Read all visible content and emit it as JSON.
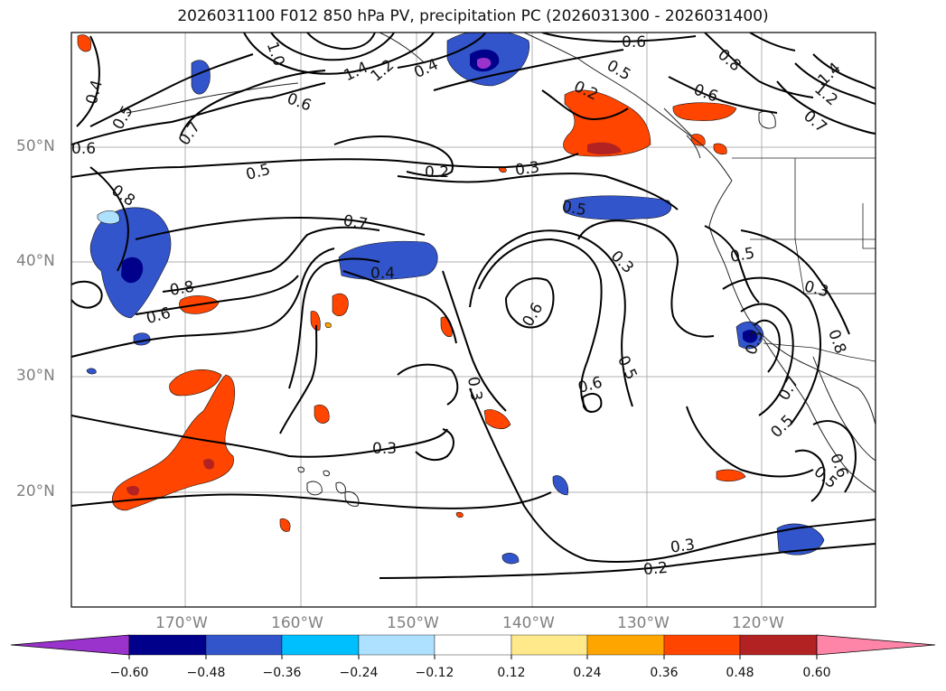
{
  "title": "2026031100 F012 850 hPa PV, precipitation PC (2026031300 - 2026031400)",
  "map": {
    "lat_labels": [
      "50°N",
      "40°N",
      "30°N",
      "20°N"
    ],
    "lon_labels": [
      "170°W",
      "160°W",
      "150°W",
      "140°W",
      "130°W",
      "120°W"
    ],
    "contour_labels": [
      "0.8",
      "0.5",
      "0.6",
      "0.4",
      "1.4",
      "1.2",
      "1.0",
      "0.7",
      "0.6",
      "0.5",
      "0.2",
      "0.3",
      "0.5",
      "0.8",
      "0.7",
      "0.4",
      "0.6",
      "0.3",
      "0.6",
      "0.5",
      "0.6",
      "0.3",
      "0.3",
      "0.5",
      "0.3",
      "0.2",
      "0.5",
      "0.7",
      "0.5",
      "0.3",
      "0.8",
      "0.6",
      "0.6",
      "0.7",
      "0.8",
      "0.3",
      "0.4",
      "0.5",
      "0.2",
      "0.6",
      "1.4",
      "1.2"
    ]
  },
  "colorbar": {
    "tick_labels": [
      "−0.60",
      "−0.48",
      "−0.36",
      "−0.24",
      "−0.12",
      "0.12",
      "0.24",
      "0.36",
      "0.48",
      "0.60"
    ],
    "colors": [
      "#9933cc",
      "#00008b",
      "#3355cc",
      "#00bfff",
      "#aee0ff",
      "#ffffff",
      "#ffe98a",
      "#ffa500",
      "#ff4500",
      "#b22222",
      "#ff85a8"
    ]
  }
}
